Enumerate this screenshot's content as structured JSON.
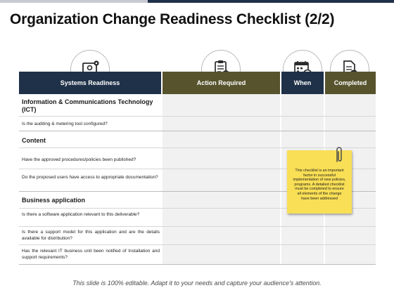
{
  "title": "Organization Change Readiness Checklist (2/2)",
  "columns": {
    "systems": "Systems Readiness",
    "action": "Action Required",
    "when": "When",
    "completed": "Completed"
  },
  "icons": [
    "laptop-gear-icon",
    "clipboard-check-icon",
    "calendar-clock-icon",
    "document-check-icon"
  ],
  "sections": [
    {
      "heading": "Information & Communications Technology (ICT)",
      "items": [
        "Is the auditing & metering tool configured?"
      ]
    },
    {
      "heading": "Content",
      "items": [
        "Have the approved procedures/policies been published?",
        "Do the proposed users have access to appropriate documentation?"
      ]
    },
    {
      "heading": "Business application",
      "items": [
        "Is there a software application relevant to this deliverable?",
        "Is there a support model for this application and are the details available for distribution?",
        "Has the relevant IT business unit been notified of Installation and support requirements?"
      ]
    }
  ],
  "note": "This checklist is an important factor in successful implementation of new policies, programs. A detailed checklist must be completed to ensure all elements of the change have been addressed",
  "footer": "This slide is 100% editable. Adapt it to your needs and capture your audience's attention.",
  "colors": {
    "header_blue": "#1f3148",
    "header_olive": "#57532d",
    "note_yellow": "#f9df55"
  }
}
